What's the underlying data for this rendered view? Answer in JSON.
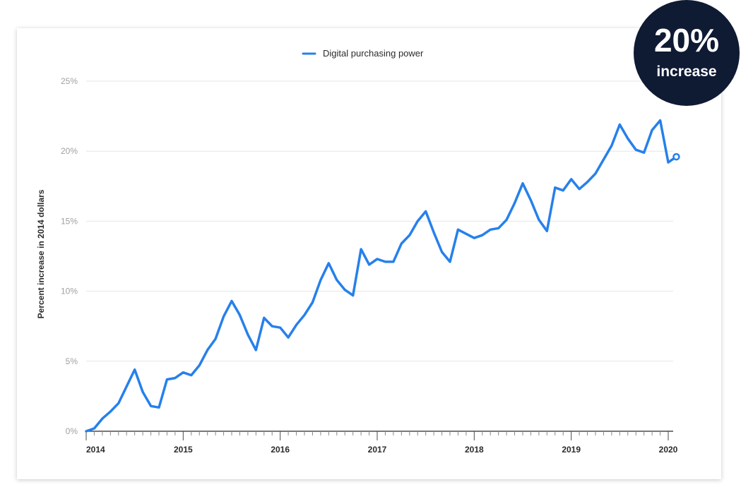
{
  "badge": {
    "value": "20%",
    "label": "increase"
  },
  "chart_data": {
    "type": "line",
    "title": "",
    "xlabel": "",
    "ylabel": "Percent increase in 2014 dollars",
    "ylim": [
      0,
      25
    ],
    "xlim": [
      2014,
      2020
    ],
    "y_ticks": [
      "0%",
      "5%",
      "10%",
      "15%",
      "20%",
      "25%"
    ],
    "y_tick_values": [
      0,
      5,
      10,
      15,
      20,
      25
    ],
    "x_ticks": [
      "2014",
      "2015",
      "2016",
      "2017",
      "2018",
      "2019",
      "2020"
    ],
    "x_tick_values": [
      2014,
      2015,
      2016,
      2017,
      2018,
      2019,
      2020
    ],
    "grid": true,
    "legend_position": "top-center",
    "line_color": "#2680eb",
    "series": [
      {
        "name": "Digital purchasing power",
        "x": [
          2014.0,
          2014.0833,
          2014.1667,
          2014.25,
          2014.3333,
          2014.4167,
          2014.5,
          2014.5833,
          2014.6667,
          2014.75,
          2014.8333,
          2014.9167,
          2015.0,
          2015.0833,
          2015.1667,
          2015.25,
          2015.3333,
          2015.4167,
          2015.5,
          2015.5833,
          2015.6667,
          2015.75,
          2015.8333,
          2015.9167,
          2016.0,
          2016.0833,
          2016.1667,
          2016.25,
          2016.3333,
          2016.4167,
          2016.5,
          2016.5833,
          2016.6667,
          2016.75,
          2016.8333,
          2016.9167,
          2017.0,
          2017.0833,
          2017.1667,
          2017.25,
          2017.3333,
          2017.4167,
          2017.5,
          2017.5833,
          2017.6667,
          2017.75,
          2017.8333,
          2017.9167,
          2018.0,
          2018.0833,
          2018.1667,
          2018.25,
          2018.3333,
          2018.4167,
          2018.5,
          2018.5833,
          2018.6667,
          2018.75,
          2018.8333,
          2018.9167,
          2019.0,
          2019.0833,
          2019.1667,
          2019.25,
          2019.3333,
          2019.4167,
          2019.5,
          2019.5833,
          2019.6667,
          2019.75,
          2019.8333,
          2019.9167,
          2020.0,
          2020.0833
        ],
        "values": [
          0.0,
          0.2,
          0.9,
          1.4,
          2.0,
          3.2,
          4.4,
          2.8,
          1.8,
          1.7,
          3.7,
          3.8,
          4.2,
          4.0,
          4.7,
          5.8,
          6.6,
          8.2,
          9.3,
          8.3,
          6.9,
          5.8,
          8.1,
          7.5,
          7.4,
          6.7,
          7.6,
          8.3,
          9.2,
          10.8,
          12.0,
          10.8,
          10.1,
          9.7,
          13.0,
          11.9,
          12.3,
          12.1,
          12.1,
          13.4,
          14.0,
          15.0,
          15.7,
          14.2,
          12.8,
          12.1,
          14.4,
          14.1,
          13.8,
          14.0,
          14.4,
          14.5,
          15.1,
          16.3,
          17.7,
          16.5,
          15.1,
          14.3,
          17.4,
          17.2,
          18.0,
          17.3,
          17.8,
          18.4,
          19.4,
          20.4,
          21.9,
          20.9,
          20.1,
          19.9,
          21.5,
          22.2,
          19.2,
          19.6
        ]
      }
    ]
  }
}
